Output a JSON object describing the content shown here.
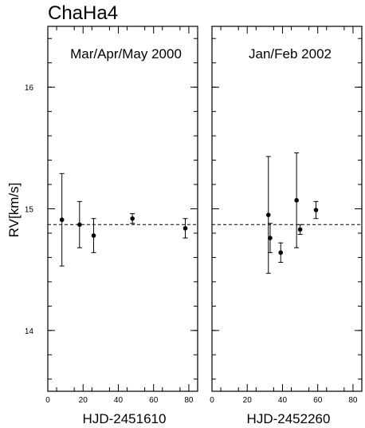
{
  "figure": {
    "title": "ChaHa4",
    "ylabel": "RV[km/s]"
  },
  "chart_data": [
    {
      "type": "scatter",
      "panel_label": "Mar/Apr/May 2000",
      "xlabel": "HJD-2451610",
      "ylabel": "RV[km/s]",
      "xlim": [
        0,
        85
      ],
      "ylim": [
        13.5,
        16.5
      ],
      "xticks": [
        0,
        20,
        40,
        60,
        80
      ],
      "yticks": [
        14,
        15,
        16
      ],
      "reference_line": 14.87,
      "x": [
        8,
        18,
        26,
        48,
        78
      ],
      "y": [
        14.91,
        14.87,
        14.78,
        14.92,
        14.84
      ],
      "yerr": [
        0.38,
        0.19,
        0.14,
        0.04,
        0.08
      ]
    },
    {
      "type": "scatter",
      "panel_label": "Jan/Feb 2002",
      "xlabel": "HJD-2452260",
      "ylabel": "",
      "xlim": [
        0,
        85
      ],
      "ylim": [
        13.5,
        16.5
      ],
      "xticks": [
        0,
        20,
        40,
        60,
        80
      ],
      "yticks": [
        14,
        15,
        16
      ],
      "reference_line": 14.87,
      "x": [
        32,
        33,
        39,
        48,
        50,
        59
      ],
      "y": [
        14.95,
        14.76,
        14.64,
        15.07,
        14.83,
        14.99
      ],
      "yerr": [
        0.48,
        0.12,
        0.08,
        0.39,
        0.04,
        0.07
      ]
    }
  ]
}
